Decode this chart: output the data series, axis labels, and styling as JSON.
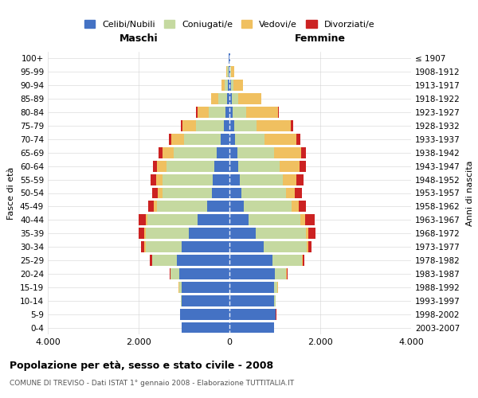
{
  "age_groups": [
    "0-4",
    "5-9",
    "10-14",
    "15-19",
    "20-24",
    "25-29",
    "30-34",
    "35-39",
    "40-44",
    "45-49",
    "50-54",
    "55-59",
    "60-64",
    "65-69",
    "70-74",
    "75-79",
    "80-84",
    "85-89",
    "90-94",
    "95-99",
    "100+"
  ],
  "birth_years": [
    "2003-2007",
    "1998-2002",
    "1993-1997",
    "1988-1992",
    "1983-1987",
    "1978-1982",
    "1973-1977",
    "1968-1972",
    "1963-1967",
    "1958-1962",
    "1953-1957",
    "1948-1952",
    "1943-1947",
    "1938-1942",
    "1933-1937",
    "1928-1932",
    "1923-1927",
    "1918-1922",
    "1913-1917",
    "1908-1912",
    "≤ 1907"
  ],
  "colors": {
    "celibi": "#4472c4",
    "coniugati": "#c5d9a0",
    "vedovi": "#f0c060",
    "divorziati": "#cc2222"
  },
  "males": {
    "celibi": [
      1050,
      1080,
      1050,
      1050,
      1100,
      1150,
      1050,
      900,
      700,
      500,
      380,
      370,
      340,
      280,
      200,
      130,
      80,
      50,
      30,
      20,
      10
    ],
    "coniugati": [
      5,
      5,
      20,
      60,
      200,
      550,
      800,
      950,
      1100,
      1100,
      1100,
      1100,
      1050,
      950,
      800,
      600,
      380,
      200,
      80,
      30,
      10
    ],
    "vedovi": [
      1,
      1,
      2,
      5,
      5,
      10,
      20,
      30,
      50,
      70,
      100,
      150,
      200,
      250,
      280,
      300,
      250,
      150,
      60,
      20,
      5
    ],
    "divorziati": [
      1,
      1,
      2,
      5,
      15,
      40,
      80,
      120,
      150,
      120,
      120,
      110,
      100,
      80,
      60,
      40,
      20,
      10,
      5,
      3,
      1
    ]
  },
  "females": {
    "celibi": [
      980,
      1020,
      990,
      980,
      1000,
      950,
      750,
      580,
      420,
      320,
      260,
      230,
      200,
      180,
      130,
      100,
      70,
      50,
      30,
      20,
      10
    ],
    "coniugati": [
      5,
      5,
      25,
      80,
      250,
      650,
      950,
      1100,
      1150,
      1050,
      980,
      950,
      900,
      800,
      650,
      500,
      300,
      150,
      60,
      20,
      5
    ],
    "vedovi": [
      1,
      1,
      2,
      5,
      10,
      15,
      30,
      60,
      100,
      150,
      200,
      300,
      450,
      600,
      700,
      750,
      700,
      500,
      200,
      60,
      10
    ],
    "divorziati": [
      1,
      1,
      2,
      5,
      15,
      40,
      80,
      150,
      200,
      160,
      160,
      150,
      130,
      100,
      80,
      50,
      20,
      10,
      5,
      3,
      1
    ]
  },
  "xlim": 4000,
  "xticks": [
    -4000,
    -2000,
    0,
    2000,
    4000
  ],
  "xticklabels": [
    "4.000",
    "2.000",
    "0",
    "2.000",
    "4.000"
  ],
  "title": "Popolazione per età, sesso e stato civile - 2008",
  "subtitle": "COMUNE DI TREVISO - Dati ISTAT 1° gennaio 2008 - Elaborazione TUTTITALIA.IT",
  "ylabel_left": "Fasce di età",
  "ylabel_right": "Anni di nascita",
  "header_left": "Maschi",
  "header_right": "Femmine",
  "legend_labels": [
    "Celibi/Nubili",
    "Coniugati/e",
    "Vedovi/e",
    "Divorziati/e"
  ],
  "legend_colors": [
    "#4472c4",
    "#c5d9a0",
    "#f0c060",
    "#cc2222"
  ]
}
